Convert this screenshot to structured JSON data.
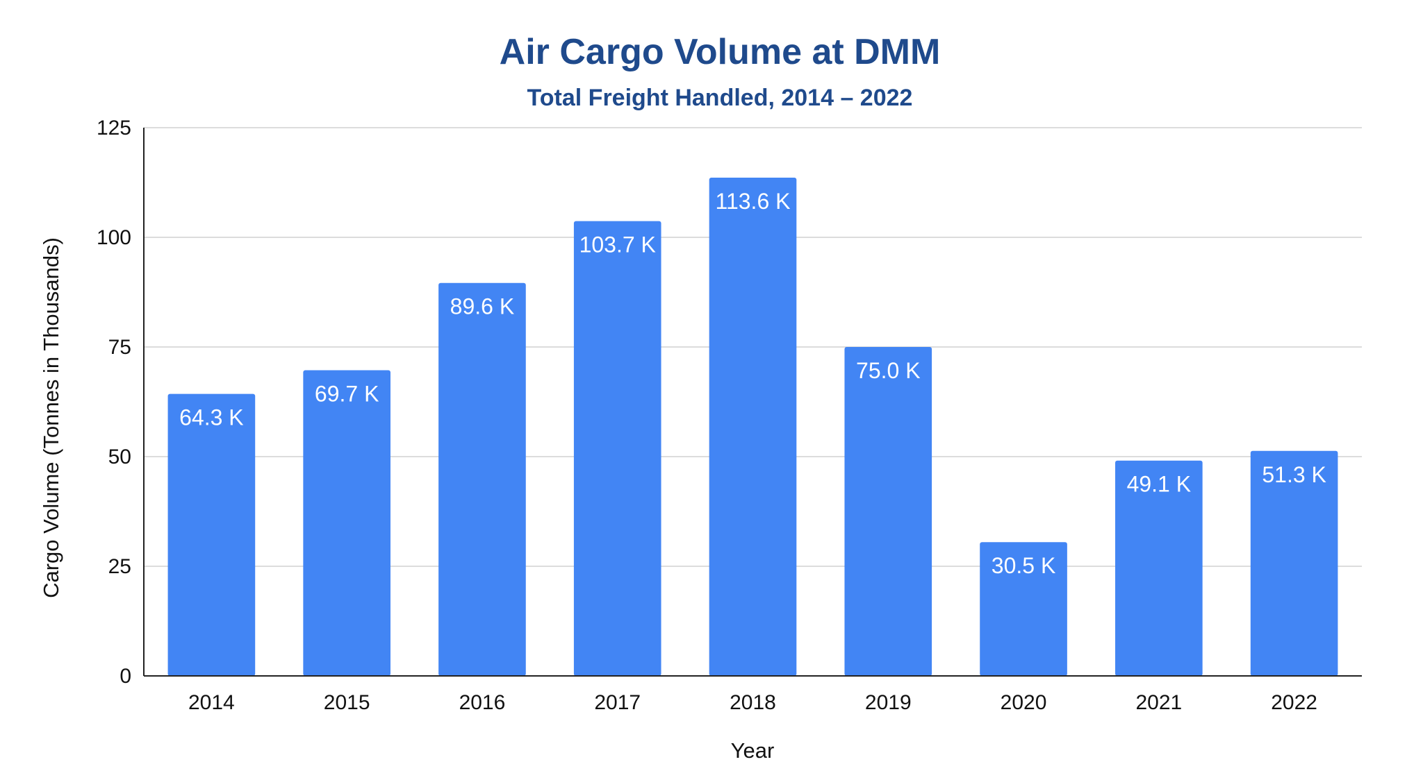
{
  "chart_data": {
    "type": "bar",
    "title": "Air Cargo Volume at DMM",
    "subtitle": "Total Freight Handled, 2014 – 2022",
    "xlabel": "Year",
    "ylabel": "Cargo Volume (Tonnes in Thousands)",
    "categories": [
      "2014",
      "2015",
      "2016",
      "2017",
      "2018",
      "2019",
      "2020",
      "2021",
      "2022"
    ],
    "values": [
      64.3,
      69.7,
      89.6,
      103.7,
      113.6,
      75.0,
      30.5,
      49.1,
      51.3
    ],
    "data_labels": [
      "64.3 K",
      "69.7 K",
      "89.6 K",
      "103.7 K",
      "113.6 K",
      "75.0 K",
      "30.5 K",
      "49.1 K",
      "51.3 K"
    ],
    "ylim": [
      0,
      125
    ],
    "yticks": [
      "0",
      "25",
      "50",
      "75",
      "100",
      "125"
    ],
    "grid": true,
    "legend": "none",
    "colors": {
      "bar": "#4285F4",
      "title": "#1F4A8C",
      "grid": "#D0D0D0",
      "axis": "#222222"
    }
  }
}
